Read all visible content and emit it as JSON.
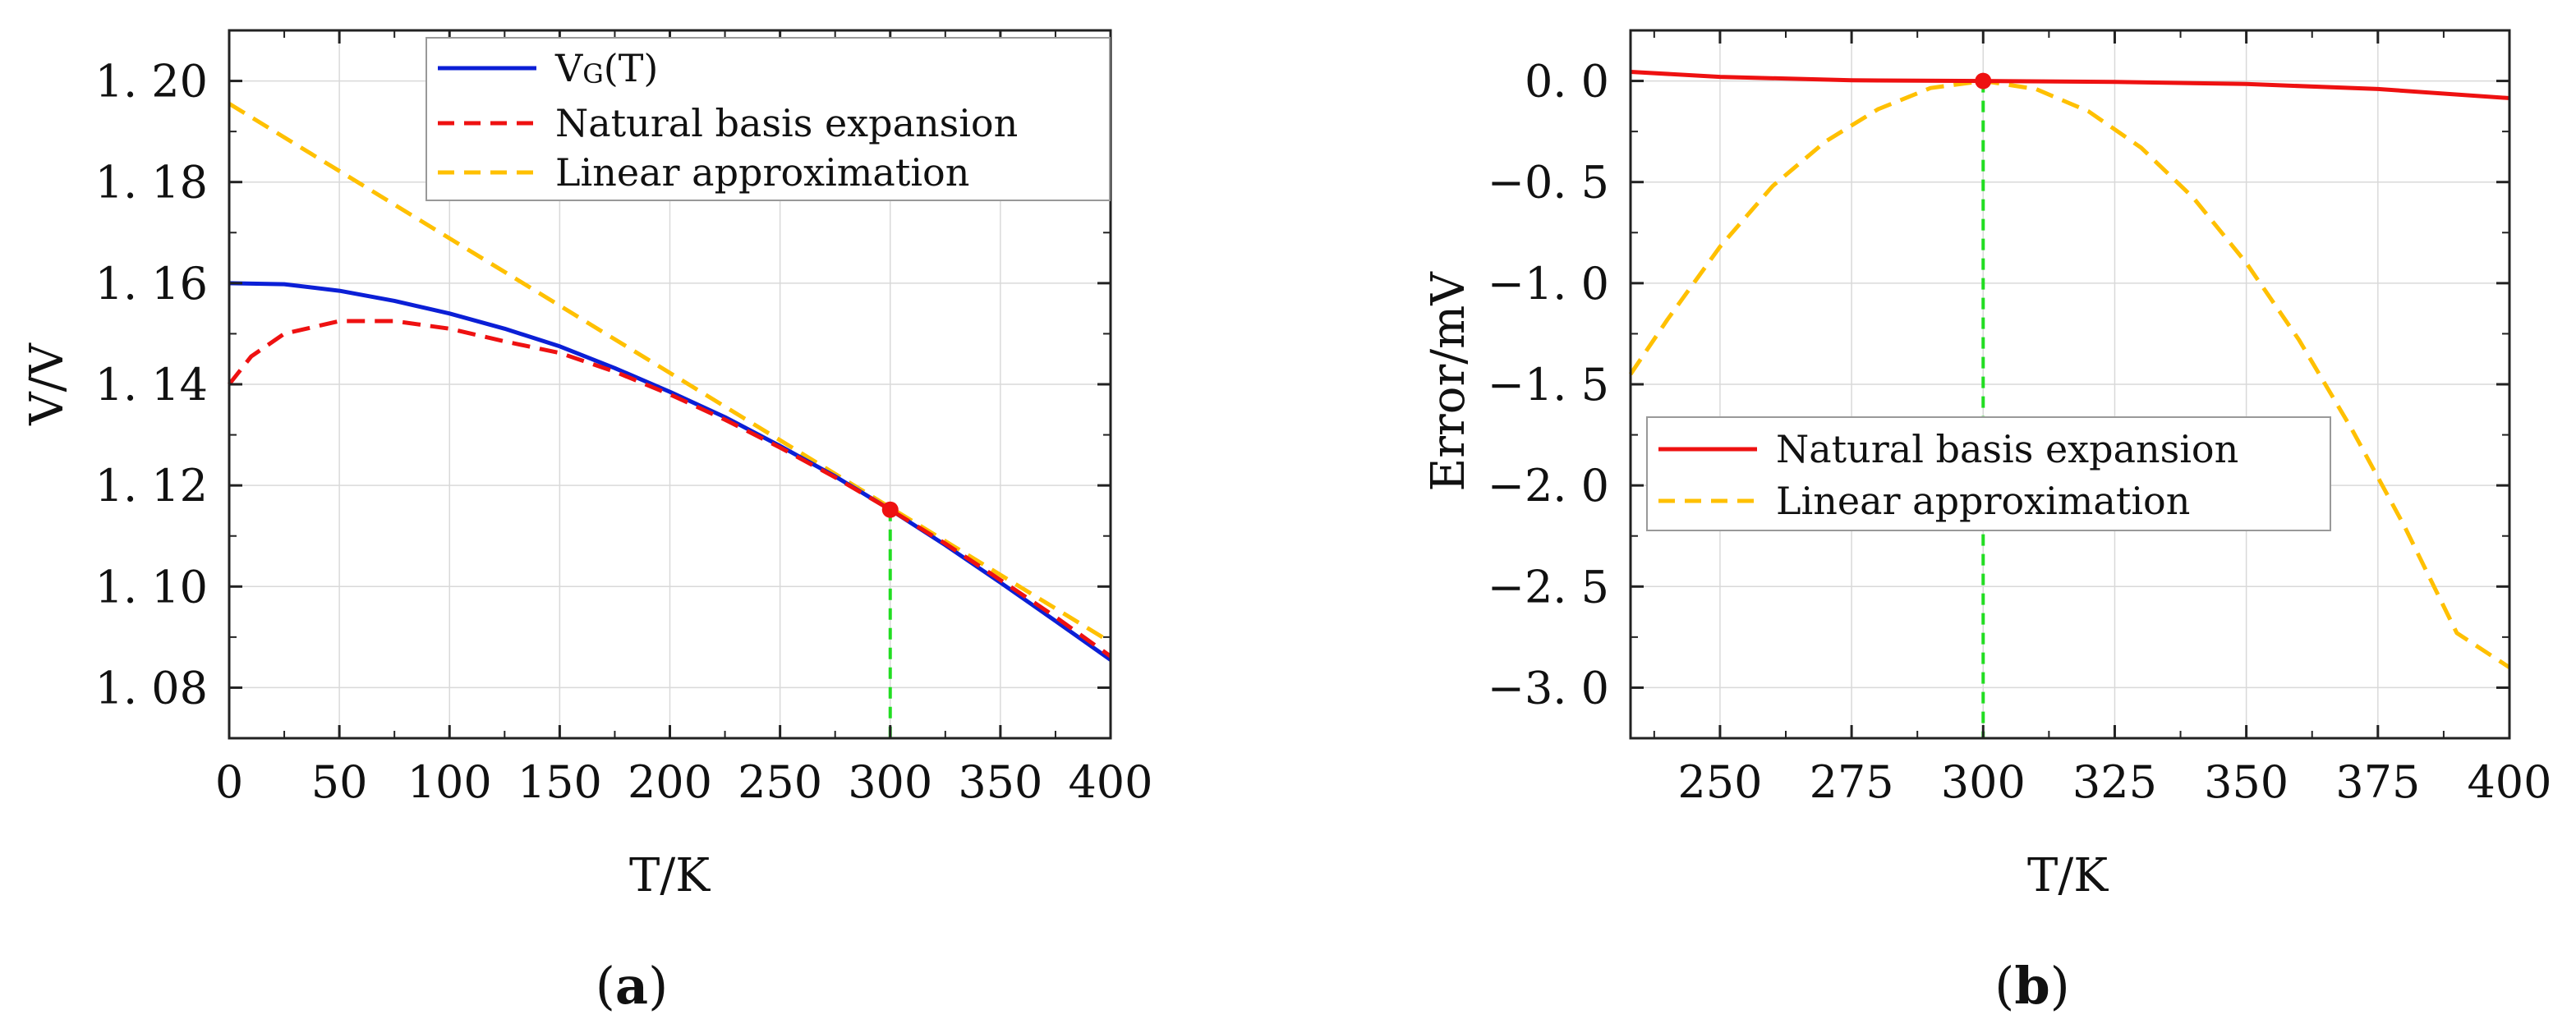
{
  "chart_data": [
    {
      "type": "line",
      "panel_label": "a",
      "xlabel": "T/K",
      "ylabel": "V/V",
      "xlim": [
        0,
        400
      ],
      "ylim": [
        1.07,
        1.21
      ],
      "xticks": [
        0,
        50,
        100,
        150,
        200,
        250,
        300,
        350,
        400
      ],
      "yticks": [
        1.08,
        1.1,
        1.12,
        1.14,
        1.16,
        1.18,
        1.2
      ],
      "ytick_labels": [
        "1. 08",
        "1. 10",
        "1. 12",
        "1. 14",
        "1. 16",
        "1. 18",
        "1. 20"
      ],
      "grid": true,
      "legend_position": "top-right",
      "series": [
        {
          "name": "VG(T)",
          "legend_main": "V",
          "legend_sub": "G",
          "legend_tail": "(T)",
          "color": "#0b1fd6",
          "style": "solid",
          "x": [
            0,
            25,
            50,
            75,
            100,
            125,
            150,
            175,
            200,
            225,
            250,
            275,
            300,
            325,
            350,
            375,
            400
          ],
          "y": [
            1.16,
            1.1598,
            1.1585,
            1.1565,
            1.154,
            1.151,
            1.1475,
            1.1432,
            1.1385,
            1.1335,
            1.1278,
            1.1218,
            1.1152,
            1.1082,
            1.1008,
            1.0932,
            1.0855
          ]
        },
        {
          "name": "Natural basis expansion",
          "color": "#ee1111",
          "style": "dashed",
          "x": [
            0,
            10,
            25,
            50,
            75,
            100,
            125,
            150,
            175,
            200,
            225,
            250,
            275,
            300,
            325,
            350,
            375,
            400
          ],
          "y": [
            1.14,
            1.1455,
            1.15,
            1.1525,
            1.1525,
            1.151,
            1.1485,
            1.1462,
            1.1425,
            1.138,
            1.133,
            1.1275,
            1.1216,
            1.1152,
            1.1085,
            1.1013,
            1.094,
            1.0862
          ]
        },
        {
          "name": "Linear approximation",
          "color": "#ffc000",
          "style": "dashed",
          "x": [
            0,
            400
          ],
          "y": [
            1.1955,
            1.089
          ]
        }
      ],
      "marker": {
        "x": 300,
        "y": 1.1152,
        "color": "#ee1111"
      },
      "vline": {
        "x": 300,
        "color": "#22dd22"
      }
    },
    {
      "type": "line",
      "panel_label": "b",
      "xlabel": "T/K",
      "ylabel": "Error/mV",
      "xlim": [
        233,
        400
      ],
      "ylim": [
        -3.25,
        0.25
      ],
      "xticks": [
        250,
        275,
        300,
        325,
        350,
        375,
        400
      ],
      "yticks": [
        0.0,
        -0.5,
        -1.0,
        -1.5,
        -2.0,
        -2.5,
        -3.0
      ],
      "ytick_labels": [
        "0. 0",
        "−0. 5",
        "−1. 0",
        "−1. 5",
        "−2. 0",
        "−2. 5",
        "−3. 0"
      ],
      "grid": true,
      "legend_position": "center-left",
      "series": [
        {
          "name": "Natural basis expansion",
          "color": "#ee1111",
          "style": "solid",
          "x": [
            233,
            250,
            275,
            300,
            325,
            350,
            375,
            400
          ],
          "y": [
            0.045,
            0.02,
            0.003,
            0.0,
            -0.005,
            -0.015,
            -0.04,
            -0.085
          ]
        },
        {
          "name": "Linear approximation",
          "color": "#ffc000",
          "style": "dashed",
          "x": [
            233,
            240,
            250,
            260,
            270,
            280,
            290,
            300,
            310,
            320,
            330,
            340,
            350,
            360,
            370,
            380,
            390,
            400
          ],
          "y": [
            -1.45,
            -1.18,
            -0.82,
            -0.52,
            -0.3,
            -0.14,
            -0.035,
            0.0,
            -0.04,
            -0.15,
            -0.33,
            -0.58,
            -0.9,
            -1.28,
            -1.72,
            -2.2,
            -2.73,
            -2.9
          ]
        }
      ],
      "marker": {
        "x": 300,
        "y": 0.0,
        "color": "#ee1111"
      },
      "vline": {
        "x": 300,
        "color": "#22dd22"
      }
    }
  ]
}
